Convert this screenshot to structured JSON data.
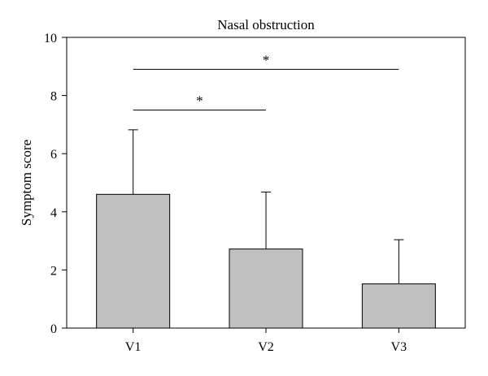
{
  "chart_data": {
    "type": "bar",
    "title": "Nasal obstruction",
    "xlabel": "",
    "ylabel": "Symptom score",
    "categories": [
      "V1",
      "V2",
      "V3"
    ],
    "values": [
      4.6,
      2.72,
      1.52
    ],
    "error_upper": [
      2.22,
      1.96,
      1.52
    ],
    "ylim": [
      0,
      10
    ],
    "yticks": [
      0,
      2,
      4,
      6,
      8,
      10
    ],
    "grid": false,
    "legend": "none",
    "bar_color": "#c0c0c0",
    "significance": [
      {
        "from": "V1",
        "to": "V3",
        "y": 8.9,
        "label": "*"
      },
      {
        "from": "V1",
        "to": "V2",
        "y": 7.5,
        "label": "*"
      }
    ]
  }
}
